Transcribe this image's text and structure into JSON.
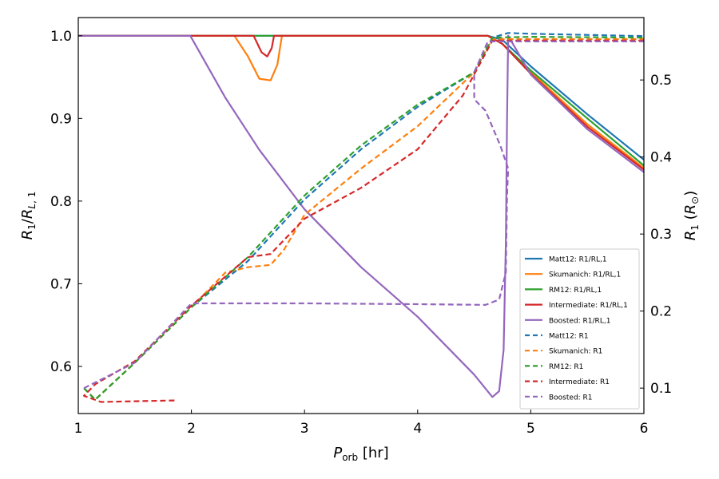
{
  "chart_data": {
    "type": "line",
    "xlabel": "P_orb [hr]",
    "ylabel_left": "R1/RL,1",
    "ylabel_right": "R1 (R⊙)",
    "xlim": [
      1,
      6
    ],
    "ylim_left": [
      0.543,
      1.022
    ],
    "ylim_right": [
      0.067,
      0.581
    ],
    "x_ticks": [
      1,
      2,
      3,
      4,
      5,
      6
    ],
    "y_left_ticks": [
      0.6,
      0.7,
      0.8,
      0.9,
      1.0
    ],
    "y_right_ticks": [
      0.1,
      0.2,
      0.3,
      0.4,
      0.5
    ],
    "legend_position": "lower-right",
    "series": [
      {
        "name": "Matt12: R1/RL,1",
        "axis": "left",
        "color": "#1f77b4",
        "style": "solid",
        "points": [
          [
            1,
            1.0
          ],
          [
            2,
            1.0
          ],
          [
            3,
            1.0
          ],
          [
            4,
            1.0
          ],
          [
            4.62,
            1.0
          ],
          [
            4.75,
            0.995
          ],
          [
            5,
            0.963
          ],
          [
            5.5,
            0.905
          ],
          [
            6,
            0.85
          ]
        ]
      },
      {
        "name": "Skumanich: R1/RL,1",
        "axis": "left",
        "color": "#ff7f0e",
        "style": "solid",
        "points": [
          [
            1,
            1.0
          ],
          [
            2,
            1.0
          ],
          [
            2.38,
            1.0
          ],
          [
            2.5,
            0.975
          ],
          [
            2.6,
            0.948
          ],
          [
            2.7,
            0.946
          ],
          [
            2.76,
            0.965
          ],
          [
            2.8,
            1.0
          ],
          [
            3,
            1.0
          ],
          [
            4,
            1.0
          ],
          [
            4.62,
            1.0
          ],
          [
            4.75,
            0.99
          ],
          [
            5,
            0.956
          ],
          [
            5.5,
            0.893
          ],
          [
            6,
            0.84
          ]
        ]
      },
      {
        "name": "RM12: R1/RL,1",
        "axis": "left",
        "color": "#2ca02c",
        "style": "solid",
        "points": [
          [
            1,
            1.0
          ],
          [
            2,
            1.0
          ],
          [
            3,
            1.0
          ],
          [
            4,
            1.0
          ],
          [
            4.62,
            1.0
          ],
          [
            4.75,
            0.99
          ],
          [
            5,
            0.958
          ],
          [
            5.5,
            0.9
          ],
          [
            6,
            0.843
          ]
        ]
      },
      {
        "name": "Intermediate: R1/RL,1",
        "axis": "left",
        "color": "#d62728",
        "style": "solid",
        "points": [
          [
            1,
            1.0
          ],
          [
            2,
            1.0
          ],
          [
            2.55,
            1.0
          ],
          [
            2.62,
            0.98
          ],
          [
            2.67,
            0.975
          ],
          [
            2.71,
            0.985
          ],
          [
            2.73,
            1.0
          ],
          [
            3,
            1.0
          ],
          [
            4,
            1.0
          ],
          [
            4.62,
            1.0
          ],
          [
            4.75,
            0.99
          ],
          [
            5,
            0.954
          ],
          [
            5.5,
            0.89
          ],
          [
            6,
            0.838
          ]
        ]
      },
      {
        "name": "Boosted: R1/RL,1",
        "axis": "left",
        "color": "#9467bd",
        "style": "solid",
        "points": [
          [
            1,
            1.0
          ],
          [
            1.99,
            1.0
          ],
          [
            2.3,
            0.925
          ],
          [
            2.6,
            0.862
          ],
          [
            3,
            0.79
          ],
          [
            3.5,
            0.72
          ],
          [
            4,
            0.66
          ],
          [
            4.5,
            0.59
          ],
          [
            4.66,
            0.563
          ],
          [
            4.72,
            0.57
          ],
          [
            4.76,
            0.62
          ],
          [
            4.78,
            0.75
          ],
          [
            4.79,
            0.9
          ],
          [
            4.8,
            1.0
          ],
          [
            5,
            0.953
          ],
          [
            5.5,
            0.887
          ],
          [
            6,
            0.835
          ]
        ]
      },
      {
        "name": "Matt12: R1",
        "axis": "right",
        "color": "#1f77b4",
        "style": "dashed",
        "points": [
          [
            1.05,
            0.1
          ],
          [
            1.15,
            0.085
          ],
          [
            1.5,
            0.133
          ],
          [
            2,
            0.205
          ],
          [
            2.5,
            0.265
          ],
          [
            3,
            0.345
          ],
          [
            3.5,
            0.41
          ],
          [
            4,
            0.465
          ],
          [
            4.5,
            0.51
          ],
          [
            4.66,
            0.555
          ],
          [
            4.8,
            0.561
          ],
          [
            5,
            0.56
          ],
          [
            6,
            0.557
          ]
        ]
      },
      {
        "name": "Skumanich: R1",
        "axis": "right",
        "color": "#ff7f0e",
        "style": "dashed",
        "points": [
          [
            1.05,
            0.1
          ],
          [
            1.15,
            0.085
          ],
          [
            1.5,
            0.133
          ],
          [
            2,
            0.205
          ],
          [
            2.3,
            0.25
          ],
          [
            2.5,
            0.257
          ],
          [
            2.7,
            0.26
          ],
          [
            2.82,
            0.28
          ],
          [
            3,
            0.325
          ],
          [
            3.5,
            0.385
          ],
          [
            4,
            0.44
          ],
          [
            4.5,
            0.51
          ],
          [
            4.66,
            0.553
          ],
          [
            5,
            0.553
          ],
          [
            6,
            0.553
          ]
        ]
      },
      {
        "name": "RM12: R1",
        "axis": "right",
        "color": "#2ca02c",
        "style": "dashed",
        "points": [
          [
            1.05,
            0.1
          ],
          [
            1.15,
            0.085
          ],
          [
            1.5,
            0.133
          ],
          [
            2,
            0.205
          ],
          [
            2.5,
            0.27
          ],
          [
            3,
            0.35
          ],
          [
            3.5,
            0.415
          ],
          [
            4,
            0.468
          ],
          [
            4.5,
            0.51
          ],
          [
            4.66,
            0.555
          ],
          [
            5,
            0.556
          ],
          [
            6,
            0.555
          ]
        ]
      },
      {
        "name": "Intermediate: R1",
        "axis": "right",
        "color": "#d62728",
        "style": "dashed",
        "points": [
          [
            1.85,
            0.084
          ],
          [
            1.5,
            0.083
          ],
          [
            1.2,
            0.082
          ],
          [
            1.05,
            0.09
          ],
          [
            1.15,
            0.105
          ],
          [
            1.5,
            0.135
          ],
          [
            2,
            0.207
          ],
          [
            2.5,
            0.27
          ],
          [
            2.7,
            0.274
          ],
          [
            3,
            0.32
          ],
          [
            3.5,
            0.36
          ],
          [
            4,
            0.41
          ],
          [
            4.4,
            0.48
          ],
          [
            4.66,
            0.551
          ],
          [
            5,
            0.551
          ],
          [
            6,
            0.551
          ]
        ]
      },
      {
        "name": "Boosted: R1",
        "axis": "right",
        "color": "#9467bd",
        "style": "dashed",
        "points": [
          [
            1.05,
            0.1
          ],
          [
            1.5,
            0.133
          ],
          [
            2,
            0.21
          ],
          [
            2.5,
            0.21
          ],
          [
            3,
            0.21
          ],
          [
            4,
            0.209
          ],
          [
            4.6,
            0.208
          ],
          [
            4.72,
            0.215
          ],
          [
            4.78,
            0.25
          ],
          [
            4.79,
            0.35
          ],
          [
            4.8,
            0.385
          ],
          [
            4.73,
            0.415
          ],
          [
            4.6,
            0.46
          ],
          [
            4.5,
            0.475
          ],
          [
            4.5,
            0.51
          ],
          [
            4.62,
            0.55
          ],
          [
            5,
            0.55
          ],
          [
            6,
            0.55
          ]
        ]
      }
    ]
  }
}
